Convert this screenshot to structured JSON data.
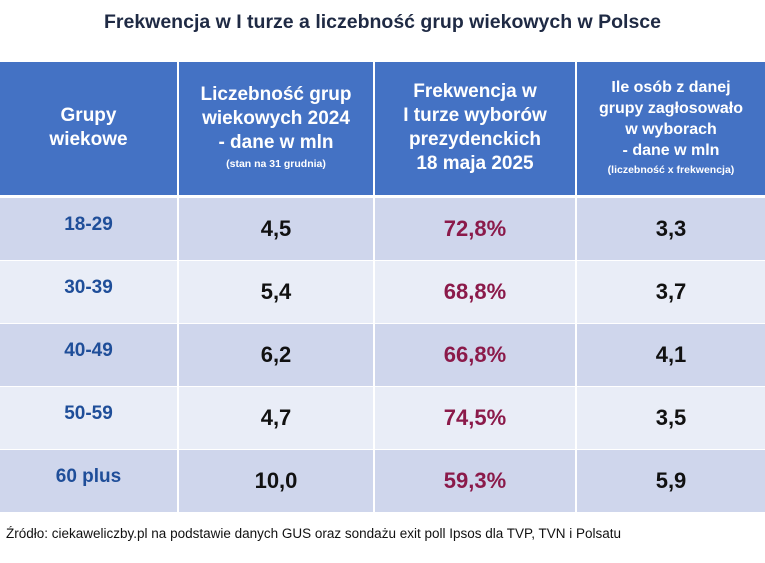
{
  "title": "Frekwencja w I turze a liczebność grup wiekowych w Polsce",
  "chart_data": {
    "type": "table",
    "title": "Frekwencja w I turze a liczebność grup wiekowych w Polsce",
    "columns": [
      {
        "label": "Grupy\nwiekowe",
        "note": ""
      },
      {
        "label": "Liczebność grup\nwiekowych 2024\n- dane w mln",
        "note": "(stan na 31 grudnia)"
      },
      {
        "label": "Frekwencja w\nI turze wyborów\nprezydenckich\n18 maja 2025",
        "note": ""
      },
      {
        "label": "Ile osób z danej\ngrupy zagłosowało\nw wyborach\n- dane w mln",
        "note": "(liczebność x frekwencja)"
      }
    ],
    "rows": [
      {
        "group": "18-29",
        "count": "4,5",
        "turnout": "72,8%",
        "voters": "3,3"
      },
      {
        "group": "30-39",
        "count": "5,4",
        "turnout": "68,8%",
        "voters": "3,7"
      },
      {
        "group": "40-49",
        "count": "6,2",
        "turnout": "66,8%",
        "voters": "4,1"
      },
      {
        "group": "50-59",
        "count": "4,7",
        "turnout": "74,5%",
        "voters": "3,5"
      },
      {
        "group": "60 plus",
        "count": "10,0",
        "turnout": "59,3%",
        "voters": "5,9"
      }
    ],
    "colors": {
      "header_bg": "#4472c4",
      "row_odd": "#cfd6ec",
      "row_even": "#e9edf7",
      "group_text": "#1f4e99",
      "turnout_text": "#8b1a4a"
    }
  },
  "source": "Źródło: ciekaweliczby.pl na podstawie danych GUS oraz sondażu exit poll Ipsos dla TVP, TVN i Polsatu"
}
